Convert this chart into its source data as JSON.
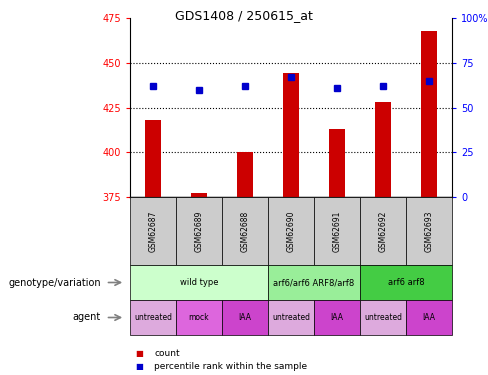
{
  "title": "GDS1408 / 250615_at",
  "samples": [
    "GSM62687",
    "GSM62689",
    "GSM62688",
    "GSM62690",
    "GSM62691",
    "GSM62692",
    "GSM62693"
  ],
  "bar_values": [
    418,
    377,
    400,
    444,
    413,
    428,
    468
  ],
  "bar_bottom": 375,
  "percentile_values": [
    437,
    435,
    437,
    442,
    436,
    437,
    440
  ],
  "ylim_left": [
    375,
    475
  ],
  "yticks_left": [
    375,
    400,
    425,
    450,
    475
  ],
  "ylim_right": [
    0,
    100
  ],
  "yticks_right": [
    0,
    25,
    50,
    75,
    100
  ],
  "bar_color": "#cc0000",
  "percentile_color": "#0000cc",
  "genotype_groups": [
    {
      "label": "wild type",
      "start": 0,
      "end": 3,
      "color": "#ccffcc"
    },
    {
      "label": "arf6/arf6 ARF8/arf8",
      "start": 3,
      "end": 5,
      "color": "#99ee99"
    },
    {
      "label": "arf6 arf8",
      "start": 5,
      "end": 7,
      "color": "#44cc44"
    }
  ],
  "agent_groups": [
    {
      "label": "untreated",
      "start": 0,
      "end": 1,
      "color": "#ddaadd"
    },
    {
      "label": "mock",
      "start": 1,
      "end": 2,
      "color": "#dd66dd"
    },
    {
      "label": "IAA",
      "start": 2,
      "end": 3,
      "color": "#cc44cc"
    },
    {
      "label": "untreated",
      "start": 3,
      "end": 4,
      "color": "#ddaadd"
    },
    {
      "label": "IAA",
      "start": 4,
      "end": 5,
      "color": "#cc44cc"
    },
    {
      "label": "untreated",
      "start": 5,
      "end": 6,
      "color": "#ddaadd"
    },
    {
      "label": "IAA",
      "start": 6,
      "end": 7,
      "color": "#cc44cc"
    }
  ],
  "legend_count_color": "#cc0000",
  "legend_percentile_color": "#0000cc",
  "xlabel_genotype": "genotype/variation",
  "xlabel_agent": "agent",
  "sample_box_color": "#cccccc",
  "grid_lines": [
    400,
    425,
    450
  ]
}
